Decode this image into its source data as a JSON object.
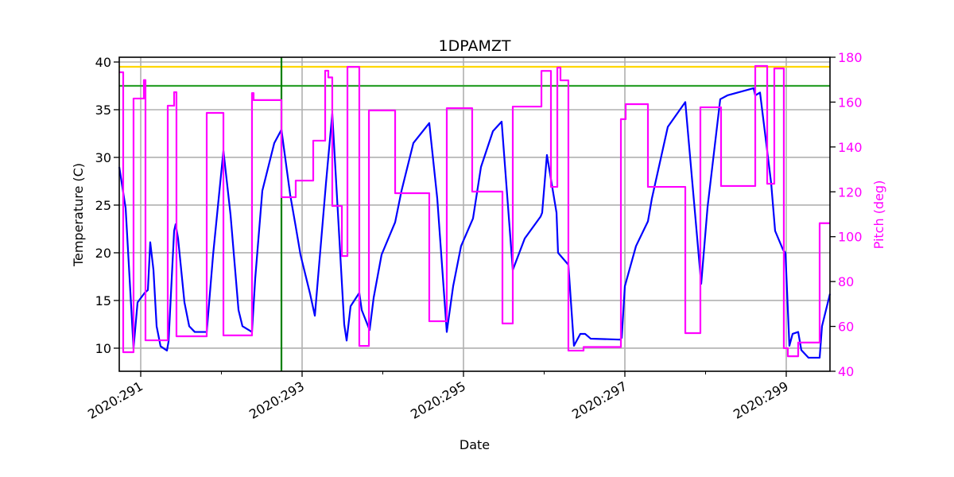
{
  "chart_data": {
    "type": "line",
    "title": "1DPAMZT",
    "xlabel": "Date",
    "ylabel": "Temperature (C)",
    "y2label": "Pitch (deg)",
    "xlim": [
      290.734,
      299.542
    ],
    "ylim": [
      7.58,
      40.5
    ],
    "y2lim": [
      40,
      180
    ],
    "grid": true,
    "x_major_ticks": [
      291,
      293,
      295,
      297,
      299
    ],
    "x_tick_labels": [
      "2020:291",
      "2020:293",
      "2020:295",
      "2020:297",
      "2020:299"
    ],
    "x_minor_ticks": [
      292,
      294,
      296,
      298
    ],
    "y_ticks": [
      10,
      15,
      20,
      25,
      30,
      35,
      40
    ],
    "y2_ticks": [
      40,
      60,
      80,
      100,
      120,
      140,
      160,
      180
    ],
    "colors": {
      "temperature": "#0000ff",
      "pitch": "#ff00ff",
      "planning_limit": "#ffd700",
      "yellow_limit": "#2ca02c",
      "now_line": "#008000",
      "y2_axis": "#ff00ff"
    },
    "reference_lines": {
      "horizontal": [
        {
          "y": 39.5,
          "color": "#ffd700"
        },
        {
          "y": 37.5,
          "color": "#2ca02c"
        }
      ],
      "vertical": [
        {
          "x": 292.744,
          "color": "#008000"
        }
      ]
    },
    "series": [
      {
        "axis": "left",
        "color": "#0000ff",
        "points": [
          [
            290.734,
            29.0
          ],
          [
            290.813,
            24.7
          ],
          [
            290.911,
            10.0
          ],
          [
            290.961,
            14.8
          ],
          [
            291.049,
            15.8
          ],
          [
            291.089,
            16.1
          ],
          [
            291.118,
            21.1
          ],
          [
            291.158,
            18.2
          ],
          [
            291.197,
            12.3
          ],
          [
            291.246,
            10.2
          ],
          [
            291.325,
            9.75
          ],
          [
            291.345,
            10.7
          ],
          [
            291.414,
            22.3
          ],
          [
            291.433,
            23.0
          ],
          [
            291.463,
            21.5
          ],
          [
            291.542,
            14.8
          ],
          [
            291.601,
            12.3
          ],
          [
            291.67,
            11.7
          ],
          [
            291.818,
            11.7
          ],
          [
            291.897,
            19.8
          ],
          [
            292.025,
            30.7
          ],
          [
            292.113,
            24.0
          ],
          [
            292.212,
            14.0
          ],
          [
            292.261,
            12.3
          ],
          [
            292.379,
            11.7
          ],
          [
            292.419,
            17.3
          ],
          [
            292.507,
            26.5
          ],
          [
            292.655,
            31.5
          ],
          [
            292.744,
            32.9
          ],
          [
            292.852,
            26.1
          ],
          [
            292.921,
            22.75
          ],
          [
            292.98,
            19.8
          ],
          [
            293.099,
            15.7
          ],
          [
            293.158,
            13.4
          ],
          [
            293.296,
            27.3
          ],
          [
            293.374,
            34.6
          ],
          [
            293.522,
            12.5
          ],
          [
            293.552,
            10.8
          ],
          [
            293.601,
            14.4
          ],
          [
            293.709,
            15.8
          ],
          [
            293.739,
            14.0
          ],
          [
            293.837,
            11.9
          ],
          [
            293.887,
            15.3
          ],
          [
            293.985,
            19.8
          ],
          [
            294.153,
            23.2
          ],
          [
            294.232,
            26.5
          ],
          [
            294.379,
            31.5
          ],
          [
            294.576,
            33.6
          ],
          [
            294.675,
            25.7
          ],
          [
            294.793,
            11.7
          ],
          [
            294.872,
            16.5
          ],
          [
            294.97,
            20.7
          ],
          [
            295.118,
            23.6
          ],
          [
            295.217,
            29.0
          ],
          [
            295.365,
            32.75
          ],
          [
            295.473,
            33.75
          ],
          [
            295.611,
            18.2
          ],
          [
            295.759,
            21.5
          ],
          [
            295.956,
            23.8
          ],
          [
            295.975,
            24.2
          ],
          [
            296.034,
            30.25
          ],
          [
            296.153,
            24.2
          ],
          [
            296.172,
            20.0
          ],
          [
            296.3,
            18.75
          ],
          [
            296.369,
            10.25
          ],
          [
            296.448,
            11.5
          ],
          [
            296.507,
            11.5
          ],
          [
            296.576,
            11.0
          ],
          [
            296.941,
            10.9
          ],
          [
            296.961,
            11.1
          ],
          [
            297.0,
            16.5
          ],
          [
            297.138,
            20.7
          ],
          [
            297.286,
            23.3
          ],
          [
            297.335,
            25.7
          ],
          [
            297.532,
            33.2
          ],
          [
            297.749,
            35.8
          ],
          [
            297.946,
            16.75
          ],
          [
            298.025,
            24.8
          ],
          [
            298.182,
            36.1
          ],
          [
            298.271,
            36.5
          ],
          [
            298.596,
            37.25
          ],
          [
            298.616,
            36.5
          ],
          [
            298.675,
            36.8
          ],
          [
            298.813,
            27.3
          ],
          [
            298.862,
            22.3
          ],
          [
            298.961,
            20.3
          ],
          [
            298.99,
            20.0
          ],
          [
            299.039,
            10.25
          ],
          [
            299.079,
            11.5
          ],
          [
            299.148,
            11.7
          ],
          [
            299.187,
            9.8
          ],
          [
            299.276,
            9.0
          ],
          [
            299.414,
            9.0
          ],
          [
            299.443,
            12.3
          ],
          [
            299.542,
            15.7
          ]
        ]
      },
      {
        "axis": "right",
        "color": "#ff00ff",
        "step": true,
        "points": [
          [
            290.734,
            173.3
          ],
          [
            290.783,
            48.5
          ],
          [
            290.911,
            161.6
          ],
          [
            291.039,
            169.8
          ],
          [
            291.059,
            53.8
          ],
          [
            291.335,
            158.4
          ],
          [
            291.414,
            164.4
          ],
          [
            291.443,
            55.6
          ],
          [
            291.818,
            155.2
          ],
          [
            292.025,
            56.0
          ],
          [
            292.379,
            164.0
          ],
          [
            292.399,
            160.9
          ],
          [
            292.744,
            117.6
          ],
          [
            292.921,
            125.0
          ],
          [
            293.138,
            142.8
          ],
          [
            293.286,
            174.0
          ],
          [
            293.325,
            171.0
          ],
          [
            293.374,
            113.7
          ],
          [
            293.493,
            91.4
          ],
          [
            293.562,
            175.7
          ],
          [
            293.709,
            51.3
          ],
          [
            293.828,
            156.3
          ],
          [
            294.153,
            119.4
          ],
          [
            294.576,
            62.3
          ],
          [
            294.793,
            157.3
          ],
          [
            295.108,
            120.1
          ],
          [
            295.483,
            61.3
          ],
          [
            295.611,
            158.0
          ],
          [
            295.966,
            173.9
          ],
          [
            296.084,
            122.2
          ],
          [
            296.163,
            175.4
          ],
          [
            296.202,
            169.7
          ],
          [
            296.3,
            49.2
          ],
          [
            296.488,
            50.8
          ],
          [
            296.951,
            152.4
          ],
          [
            297.01,
            159.1
          ],
          [
            297.286,
            122.2
          ],
          [
            297.749,
            57.0
          ],
          [
            297.936,
            157.7
          ],
          [
            298.192,
            122.6
          ],
          [
            298.616,
            176.1
          ],
          [
            298.764,
            123.6
          ],
          [
            298.852,
            175.0
          ],
          [
            298.97,
            50.3
          ],
          [
            299.02,
            46.7
          ],
          [
            299.148,
            52.8
          ],
          [
            299.414,
            106.0
          ],
          [
            299.542,
            106.0
          ]
        ]
      }
    ]
  }
}
